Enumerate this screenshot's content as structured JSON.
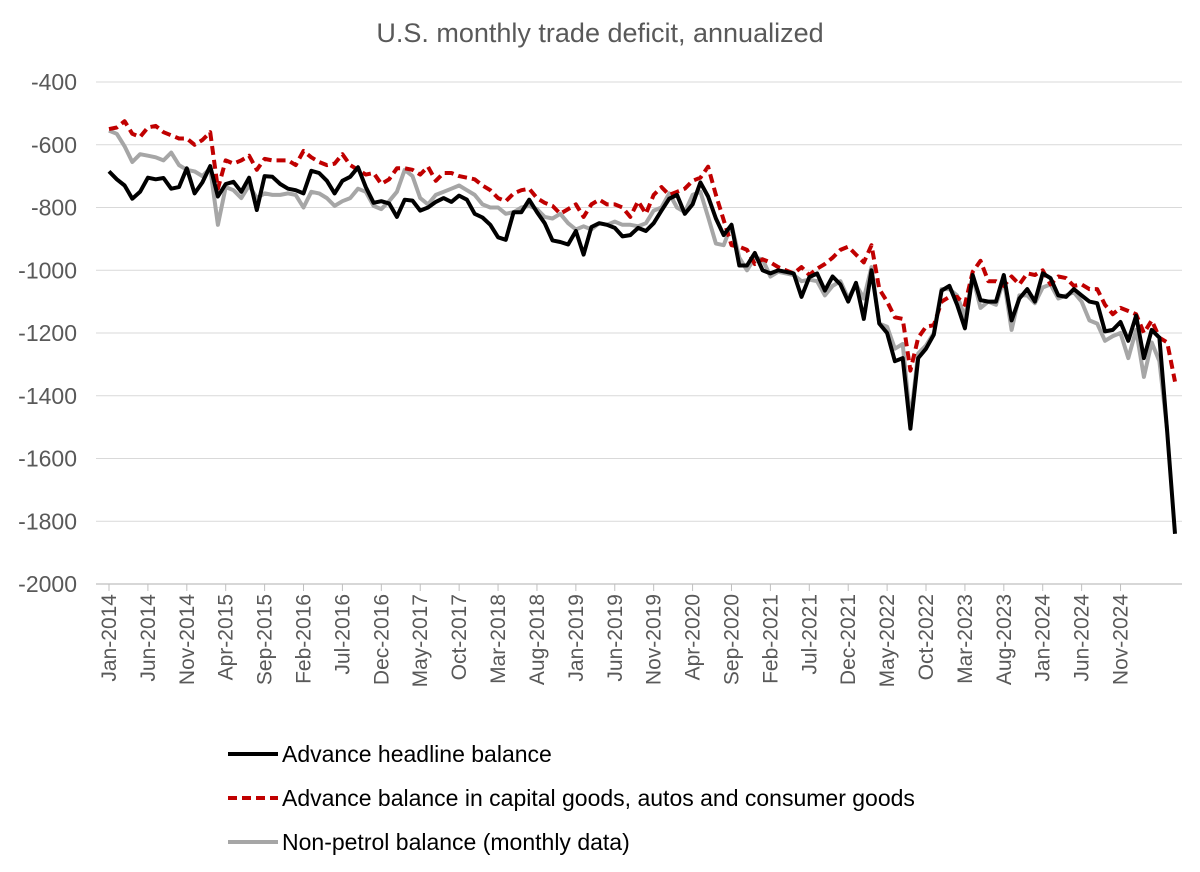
{
  "chart_data": {
    "type": "line",
    "title": "U.S. monthly trade deficit, annualized",
    "xlabel": "",
    "ylabel": "",
    "ylim": [
      -2000,
      -400
    ],
    "yticks": [
      -400,
      -600,
      -800,
      -1000,
      -1200,
      -1400,
      -1600,
      -1800,
      -2000
    ],
    "grid": true,
    "legend_position": "bottom",
    "x_tick_labels": [
      "Jan-2014",
      "Jun-2014",
      "Nov-2014",
      "Apr-2015",
      "Sep-2015",
      "Feb-2016",
      "Jul-2016",
      "Dec-2016",
      "May-2017",
      "Oct-2017",
      "Mar-2018",
      "Aug-2018",
      "Jan-2019",
      "Jun-2019",
      "Nov-2019",
      "Apr-2020",
      "Sep-2020",
      "Feb-2021",
      "Jul-2021",
      "Dec-2021",
      "May-2022",
      "Oct-2022",
      "Mar-2023",
      "Aug-2023",
      "Jan-2024",
      "Jun-2024",
      "Nov-2024"
    ],
    "x_start": "Jan-2014",
    "series": [
      {
        "name": "Advance headline balance",
        "color": "#000000",
        "dash": "solid",
        "values": [
          -685,
          -710,
          -730,
          -772,
          -750,
          -705,
          -710,
          -706,
          -740,
          -735,
          -675,
          -755,
          -720,
          -668,
          -765,
          -725,
          -718,
          -750,
          -705,
          -808,
          -700,
          -702,
          -725,
          -740,
          -745,
          -755,
          -683,
          -690,
          -715,
          -755,
          -715,
          -702,
          -672,
          -735,
          -785,
          -780,
          -787,
          -830,
          -775,
          -778,
          -810,
          -800,
          -782,
          -770,
          -782,
          -762,
          -775,
          -820,
          -832,
          -855,
          -895,
          -903,
          -815,
          -815,
          -775,
          -815,
          -850,
          -905,
          -910,
          -918,
          -875,
          -950,
          -862,
          -850,
          -855,
          -865,
          -892,
          -888,
          -865,
          -875,
          -850,
          -810,
          -772,
          -760,
          -820,
          -790,
          -720,
          -765,
          -835,
          -888,
          -855,
          -985,
          -985,
          -945,
          -1000,
          -1010,
          -1000,
          -1005,
          -1010,
          -1085,
          -1022,
          -1010,
          -1065,
          -1020,
          -1045,
          -1100,
          -1040,
          -1155,
          -1000,
          -1170,
          -1200,
          -1290,
          -1280,
          -1505,
          -1280,
          -1250,
          -1205,
          -1065,
          -1050,
          -1110,
          -1185,
          -1015,
          -1095,
          -1100,
          -1100,
          -1015,
          -1160,
          -1090,
          -1060,
          -1100,
          -1010,
          -1025,
          -1080,
          -1085,
          -1060,
          -1080,
          -1100,
          -1105,
          -1195,
          -1190,
          -1165,
          -1225,
          -1145,
          -1280,
          -1190,
          -1215,
          -1515,
          -1840
        ]
      },
      {
        "name": "Advance balance in capital goods, autos and consumer goods",
        "color": "#c00000",
        "dash": "dashed",
        "values": [
          -550,
          -545,
          -525,
          -565,
          -575,
          -545,
          -540,
          -560,
          -570,
          -580,
          -580,
          -600,
          -585,
          -560,
          -740,
          -650,
          -660,
          -650,
          -635,
          -680,
          -645,
          -650,
          -650,
          -650,
          -665,
          -620,
          -640,
          -655,
          -665,
          -660,
          -630,
          -665,
          -680,
          -695,
          -690,
          -725,
          -710,
          -675,
          -675,
          -680,
          -695,
          -670,
          -715,
          -690,
          -690,
          -700,
          -705,
          -710,
          -730,
          -745,
          -770,
          -780,
          -755,
          -745,
          -740,
          -770,
          -785,
          -795,
          -820,
          -805,
          -790,
          -830,
          -790,
          -775,
          -790,
          -790,
          -800,
          -830,
          -780,
          -820,
          -760,
          -735,
          -760,
          -750,
          -740,
          -715,
          -705,
          -670,
          -760,
          -840,
          -920,
          -925,
          -935,
          -980,
          -965,
          -975,
          -990,
          -1000,
          -1010,
          -990,
          -1015,
          -995,
          -980,
          -960,
          -935,
          -925,
          -950,
          -975,
          -920,
          -1060,
          -1100,
          -1150,
          -1155,
          -1320,
          -1215,
          -1180,
          -1175,
          -1100,
          -1085,
          -1085,
          -1110,
          -1005,
          -970,
          -1035,
          -1035,
          -1050,
          -1020,
          -1045,
          -1010,
          -1015,
          -1000,
          -1045,
          -1020,
          -1025,
          -1050,
          -1045,
          -1060,
          -1060,
          -1110,
          -1140,
          -1120,
          -1130,
          -1140,
          -1200,
          -1160,
          -1215,
          -1230,
          -1355
        ]
      },
      {
        "name": "Non-petrol balance (monthly data)",
        "color": "#a6a6a6",
        "dash": "solid",
        "values": [
          -555,
          -565,
          -605,
          -655,
          -630,
          -635,
          -640,
          -650,
          -625,
          -665,
          -680,
          -685,
          -700,
          -675,
          -855,
          -735,
          -745,
          -770,
          -730,
          -770,
          -755,
          -760,
          -760,
          -755,
          -760,
          -800,
          -750,
          -755,
          -770,
          -795,
          -780,
          -770,
          -740,
          -750,
          -795,
          -805,
          -780,
          -750,
          -680,
          -700,
          -770,
          -790,
          -760,
          -750,
          -740,
          -730,
          -745,
          -760,
          -790,
          -800,
          -800,
          -820,
          -815,
          -800,
          -795,
          -805,
          -830,
          -835,
          -820,
          -850,
          -870,
          -860,
          -870,
          -850,
          -855,
          -845,
          -855,
          -855,
          -860,
          -850,
          -810,
          -800,
          -755,
          -800,
          -815,
          -760,
          -750,
          -830,
          -915,
          -920,
          -855,
          -960,
          -1000,
          -960,
          -965,
          -1020,
          -1005,
          -1010,
          -1015,
          -1035,
          -1030,
          -1035,
          -1080,
          -1050,
          -1035,
          -1090,
          -1045,
          -1090,
          -990,
          -1170,
          -1180,
          -1250,
          -1235,
          -1480,
          -1265,
          -1240,
          -1200,
          -1060,
          -1060,
          -1080,
          -1150,
          -1020,
          -1120,
          -1100,
          -1110,
          -1030,
          -1190,
          -1080,
          -1080,
          -1105,
          -1055,
          -1045,
          -1090,
          -1080,
          -1070,
          -1100,
          -1160,
          -1170,
          -1225,
          -1210,
          -1200,
          -1280,
          -1190,
          -1340,
          -1230,
          -1290,
          -1510
        ]
      }
    ]
  }
}
